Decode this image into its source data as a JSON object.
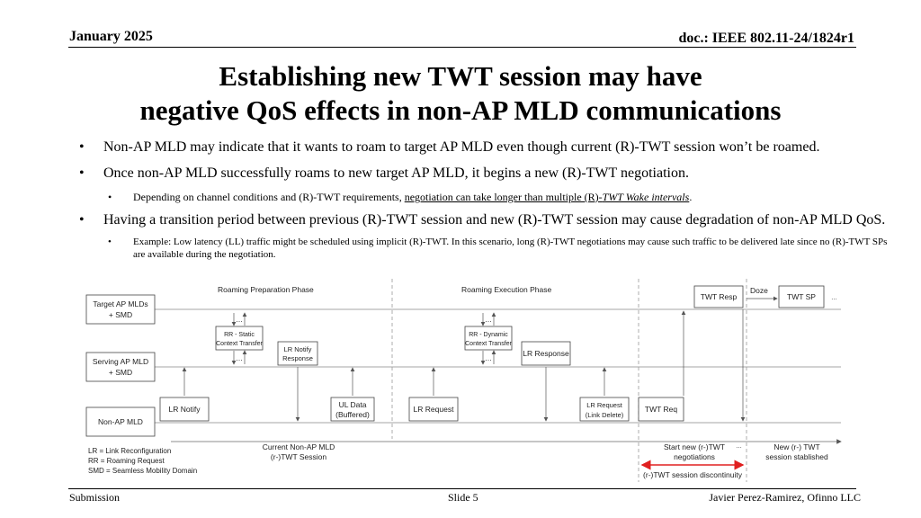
{
  "header": {
    "date": "January 2025",
    "doc": "doc.: IEEE 802.11-24/1824r1"
  },
  "title": {
    "line1": "Establishing new TWT session may have",
    "line2": "negative QoS effects in non-AP MLD communications"
  },
  "bullets": {
    "b1": "Non-AP MLD may indicate that it wants to roam to target AP MLD even though current (R)-TWT session won’t be roamed.",
    "b2": "Once non-AP MLD successfully roams to new target AP MLD, it begins a new (R)-TWT negotiation.",
    "b2_sub_pre": "Depending on channel conditions and (R)-TWT requirements, ",
    "b2_sub_ul": "negotiation can take longer than multiple (R)-",
    "b2_sub_ul_italic": "TWT Wake intervals",
    "b2_sub_post": ".",
    "b3": "Having a transition period between previous (R)-TWT session and new (R)-TWT session may cause degradation of non-AP MLD QoS.",
    "b3_sub": "Example: Low latency (LL) traffic might be scheduled using implicit (R)-TWT. In this scenario, long (R)-TWT negotiations may cause such traffic to be delivered late since no (R)-TWT SPs are available during the negotiation."
  },
  "diagram": {
    "entities": {
      "target_1": "Target AP MLDs",
      "target_2": "+ SMD",
      "serving_1": "Serving AP MLD",
      "serving_2": "+ SMD",
      "nonap": "Non-AP MLD"
    },
    "phases": {
      "prep": "Roaming Preparation Phase",
      "exec": "Roaming Execution Phase"
    },
    "boxes": {
      "rr_static_1": "RR - Static",
      "rr_static_2": "Context Transfer",
      "rr_dynamic_1": "RR - Dynamic",
      "rr_dynamic_2": "Context Transfer",
      "lr_notify_resp_1": "LR Notify",
      "lr_notify_resp_2": "Response",
      "lr_response": "LR Response",
      "lr_notify": "LR Notify",
      "ul_data_1": "UL Data",
      "ul_data_2": "(Buffered)",
      "lr_request": "LR Request",
      "lr_req_del_1": "LR Request",
      "lr_req_del_2": "(Link Delete)",
      "twt_req": "TWT Req",
      "twt_resp": "TWT Resp",
      "twt_sp": "TWT SP",
      "doze": "Doze",
      "ellipsis": "…",
      "dots": "…"
    },
    "legend": {
      "lr": "LR = Link Reconfiguration",
      "rr": "RR = Roaming Request",
      "smd": "SMD = Seamless Mobility Domain"
    },
    "timeline": {
      "current_1": "Current Non-AP MLD",
      "current_2": "(r-)TWT Session",
      "startnew_1": "Start new (r-)TWT",
      "startnew_2": "negotiations",
      "newsess_1": "New (r-) TWT",
      "newsess_2": "session stablished",
      "discontinuity": "(r-)TWT session discontinuity"
    },
    "colors": {
      "discontinuity": "#e02020",
      "line": "#555555",
      "box": "#444444"
    }
  },
  "footer": {
    "left": "Submission",
    "mid": "Slide 5",
    "right": "Javier Perez-Ramirez, Ofinno LLC"
  }
}
